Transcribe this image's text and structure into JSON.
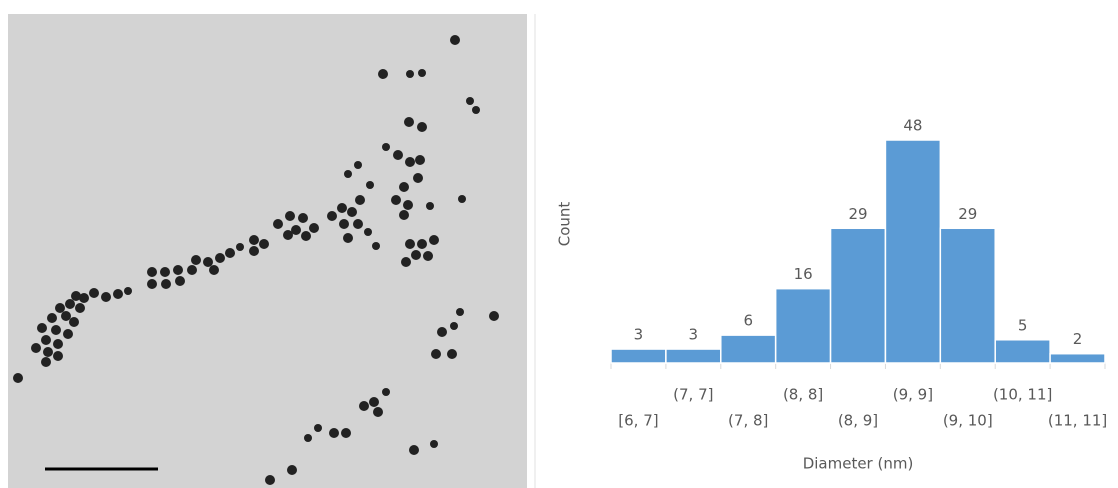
{
  "chart_data": {
    "type": "bar",
    "categories": [
      "[6, 7]",
      "(7, 7]",
      "(7, 8]",
      "(8, 8]",
      "(8, 9]",
      "(9, 9]",
      "(9, 10]",
      "(10, 11]",
      "(11, 11]"
    ],
    "values": [
      3,
      3,
      6,
      16,
      29,
      48,
      29,
      5,
      2
    ],
    "color": "#5b9bd5",
    "xlabel": "Diameter (nm)",
    "ylabel": "Count"
  }
}
